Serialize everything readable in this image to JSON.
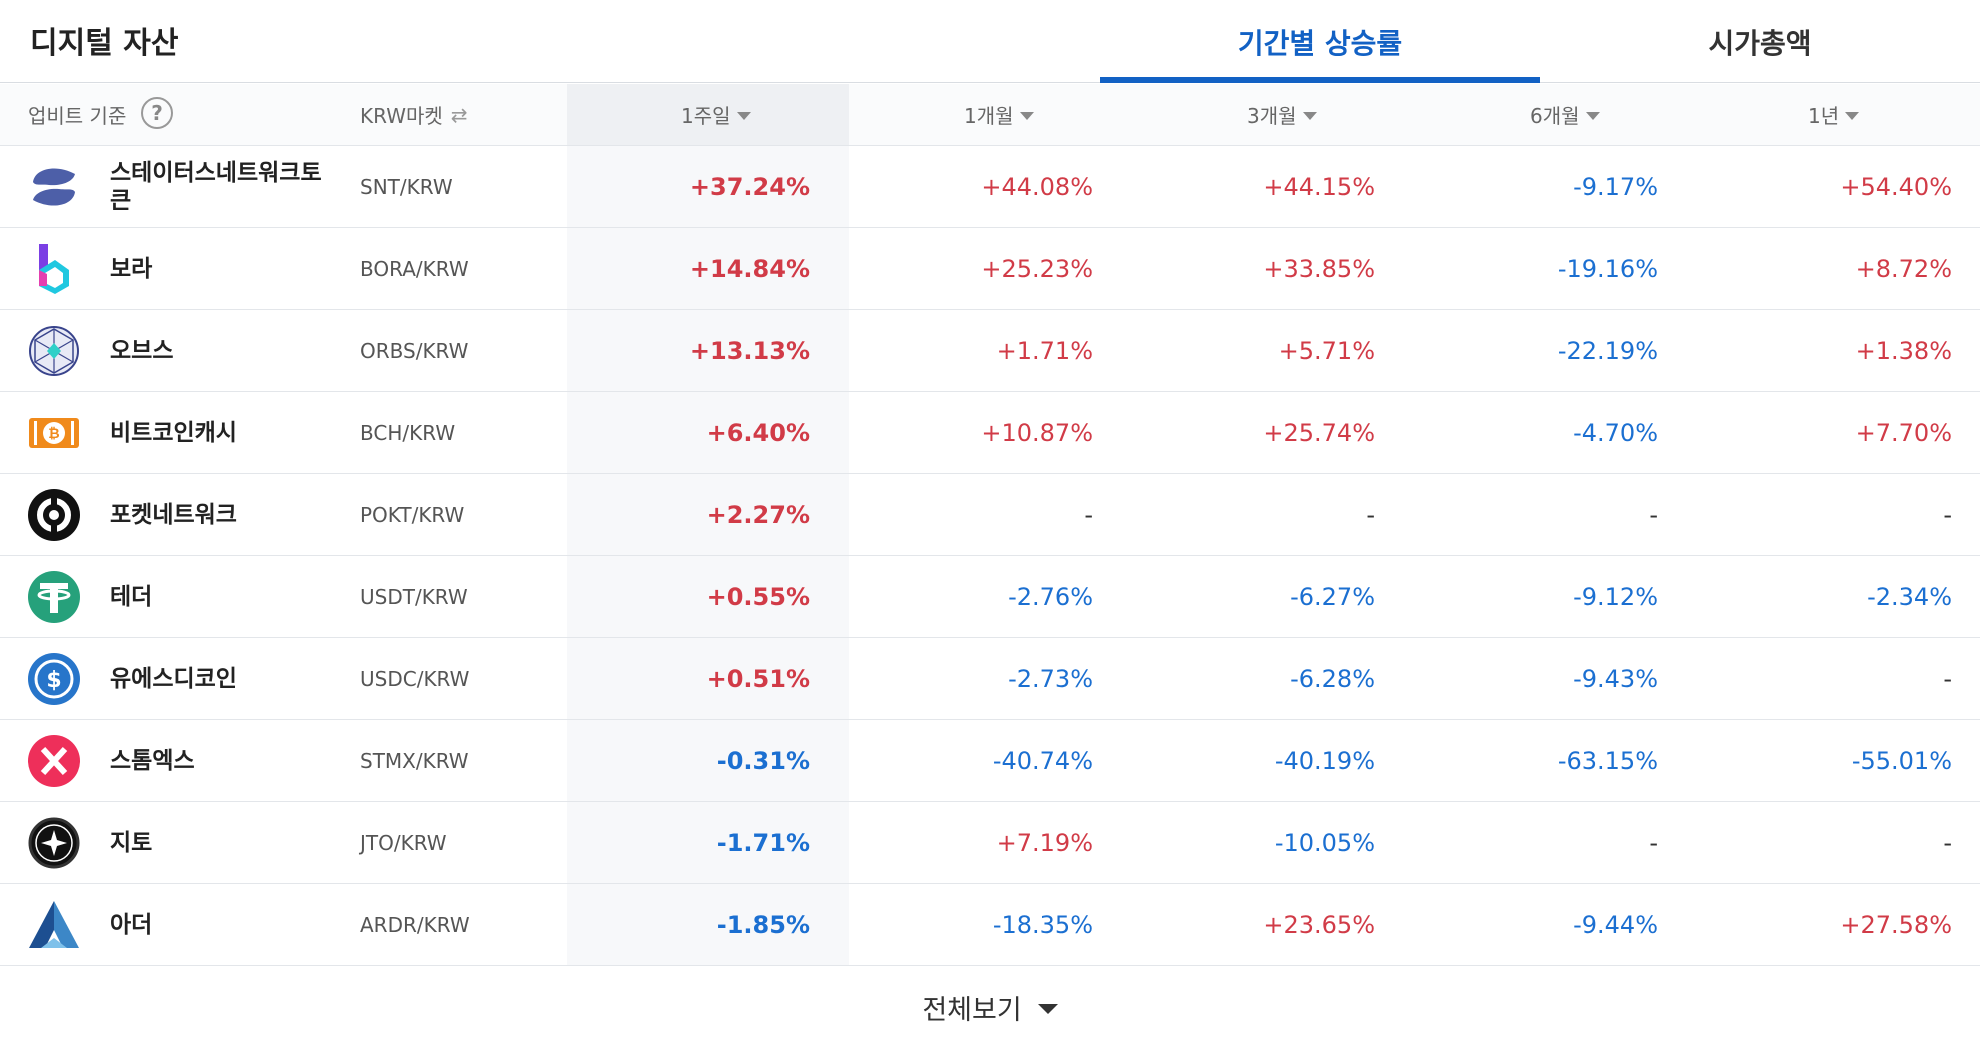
{
  "header": {
    "title": "디지털 자산",
    "tabs": [
      {
        "label": "기간별 상승률",
        "active": true
      },
      {
        "label": "시가총액",
        "active": false
      }
    ]
  },
  "columns": {
    "base": "업비트 기준",
    "market": "KRW마켓",
    "p1w": "1주일",
    "p1m": "1개월",
    "p3m": "3개월",
    "p6m": "6개월",
    "p1y": "1년"
  },
  "colors": {
    "up": "#d13b47",
    "down": "#1b6fd1",
    "accent": "#1261c4"
  },
  "rows": [
    {
      "name": "스테이터스네트워크토큰",
      "pair": "SNT/KRW",
      "icon": "status-network-logo",
      "w1": "+37.24%",
      "m1": "+44.08%",
      "m3": "+44.15%",
      "m6": "-9.17%",
      "y1": "+54.40%"
    },
    {
      "name": "보라",
      "pair": "BORA/KRW",
      "icon": "bora-logo",
      "w1": "+14.84%",
      "m1": "+25.23%",
      "m3": "+33.85%",
      "m6": "-19.16%",
      "y1": "+8.72%"
    },
    {
      "name": "오브스",
      "pair": "ORBS/KRW",
      "icon": "orbs-logo",
      "w1": "+13.13%",
      "m1": "+1.71%",
      "m3": "+5.71%",
      "m6": "-22.19%",
      "y1": "+1.38%"
    },
    {
      "name": "비트코인캐시",
      "pair": "BCH/KRW",
      "icon": "bitcoin-cash-logo",
      "w1": "+6.40%",
      "m1": "+10.87%",
      "m3": "+25.74%",
      "m6": "-4.70%",
      "y1": "+7.70%"
    },
    {
      "name": "포켓네트워크",
      "pair": "POKT/KRW",
      "icon": "pocket-network-logo",
      "w1": "+2.27%",
      "m1": "-",
      "m3": "-",
      "m6": "-",
      "y1": "-"
    },
    {
      "name": "테더",
      "pair": "USDT/KRW",
      "icon": "tether-logo",
      "w1": "+0.55%",
      "m1": "-2.76%",
      "m3": "-6.27%",
      "m6": "-9.12%",
      "y1": "-2.34%"
    },
    {
      "name": "유에스디코인",
      "pair": "USDC/KRW",
      "icon": "usdc-logo",
      "w1": "+0.51%",
      "m1": "-2.73%",
      "m3": "-6.28%",
      "m6": "-9.43%",
      "y1": "-"
    },
    {
      "name": "스톰엑스",
      "pair": "STMX/KRW",
      "icon": "stormx-logo",
      "w1": "-0.31%",
      "m1": "-40.74%",
      "m3": "-40.19%",
      "m6": "-63.15%",
      "y1": "-55.01%"
    },
    {
      "name": "지토",
      "pair": "JTO/KRW",
      "icon": "jito-logo",
      "w1": "-1.71%",
      "m1": "+7.19%",
      "m3": "-10.05%",
      "m6": "-",
      "y1": "-"
    },
    {
      "name": "아더",
      "pair": "ARDR/KRW",
      "icon": "ardor-logo",
      "w1": "-1.85%",
      "m1": "-18.35%",
      "m3": "+23.65%",
      "m6": "-9.44%",
      "y1": "+27.58%"
    }
  ],
  "footer": {
    "view_all": "전체보기"
  }
}
